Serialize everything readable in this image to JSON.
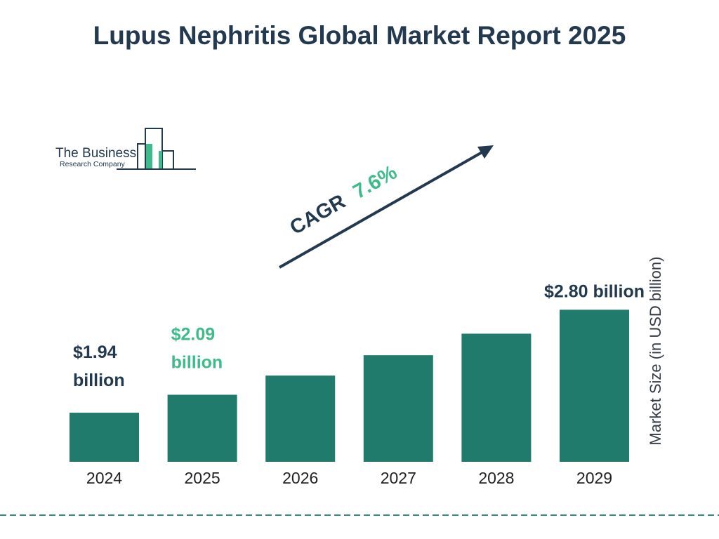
{
  "brand": {
    "line1": "The Business",
    "line2": "Research Company"
  },
  "chart_data": {
    "type": "bar",
    "title": "Lupus Nephritis Global Market Report 2025",
    "ylabel": "Market Size (in USD billion)",
    "xlabel": "",
    "categories": [
      "2024",
      "2025",
      "2026",
      "2027",
      "2028",
      "2029"
    ],
    "values": [
      1.94,
      2.09,
      2.25,
      2.42,
      2.6,
      2.8
    ],
    "value_labels": [
      [
        "$1.94",
        "billion"
      ],
      [
        "$2.09",
        "billion"
      ],
      null,
      null,
      null,
      [
        "$2.80 billion"
      ]
    ],
    "cagr": {
      "prefix": "CAGR",
      "value": "7.6%"
    },
    "grid": false,
    "legend": "none"
  },
  "colors": {
    "bar": "#207b6c",
    "title": "#22394f",
    "highlight": "#3dbb8a",
    "dark_label": "#22394f",
    "divider": "#2f8f7e"
  }
}
